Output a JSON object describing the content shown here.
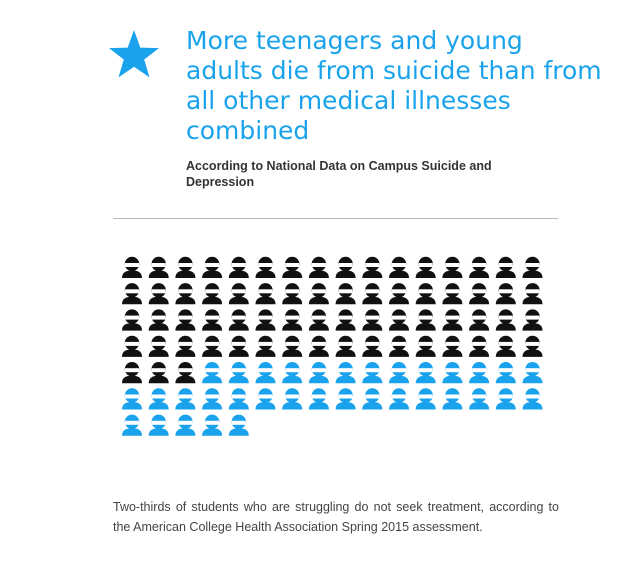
{
  "header": {
    "icon": "star-icon",
    "title": "More teenagers and young adults die from suicide than from all other medical illnesses combined",
    "source": "According to National Data on Campus Suicide and Depression"
  },
  "chart_data": {
    "type": "pictogram",
    "unit_icon": "person-icon",
    "series": [
      {
        "count": 67,
        "color": "#111111"
      },
      {
        "count": 34,
        "color": "#1aa3ec"
      }
    ],
    "columns": 16
  },
  "footnote": "Two-thirds of students who are struggling do not seek treatment, according to the American College Health Association Spring 2015 assessment."
}
